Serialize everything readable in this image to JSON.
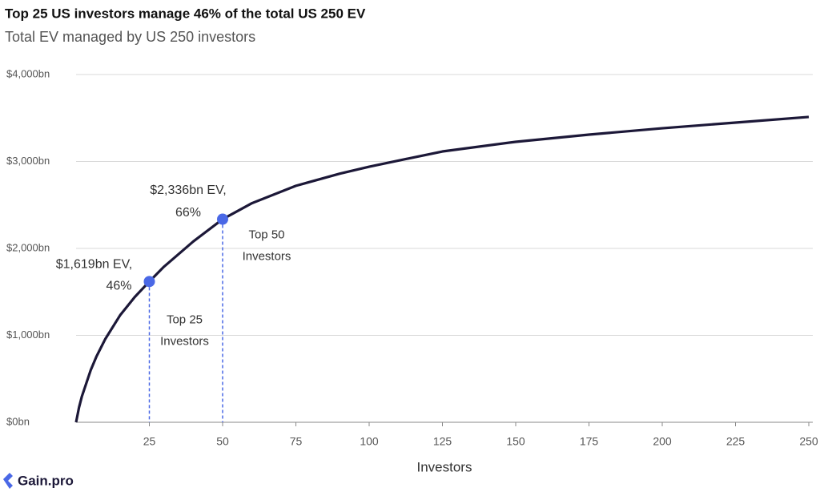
{
  "chart_data": {
    "type": "line",
    "title": "Top 25 US investors manage 46% of the total US 250 EV",
    "subtitle": "Total EV managed by US 250 investors",
    "x_label": "Investors",
    "x": [
      0,
      1,
      2,
      3,
      5,
      7,
      10,
      15,
      20,
      25,
      30,
      40,
      50,
      60,
      75,
      90,
      100,
      125,
      150,
      175,
      200,
      225,
      250
    ],
    "series": [
      {
        "color": "#1c1838",
        "values": [
          0,
          170,
          300,
          400,
          600,
          760,
          960,
          1230,
          1440,
          1619,
          1790,
          2080,
          2336,
          2520,
          2720,
          2860,
          2940,
          3115,
          3226,
          3309,
          3382,
          3447,
          3512
        ]
      }
    ],
    "xlim": [
      0,
      250
    ],
    "xticks": [
      25,
      50,
      75,
      100,
      125,
      150,
      175,
      200,
      225,
      250
    ],
    "ylim": [
      0,
      4000
    ],
    "yticks": [
      {
        "value": 0,
        "label": "$0bn"
      },
      {
        "value": 1000,
        "label": "$1,000bn"
      },
      {
        "value": 2000,
        "label": "$2,000bn"
      },
      {
        "value": 3000,
        "label": "$3,000bn"
      },
      {
        "value": 4000,
        "label": "$4,000bn"
      }
    ],
    "grid": true,
    "marker_color": "#4a68e6",
    "annotations": [
      {
        "x": 25,
        "y": 1619,
        "label_lines": [
          "$1,619bn EV,",
          "46%"
        ],
        "note_lines": [
          "Top 25",
          "Investors"
        ]
      },
      {
        "x": 50,
        "y": 2336,
        "label_lines": [
          "$2,336bn EV,",
          "66%"
        ],
        "note_lines": [
          "Top 50",
          "Investors"
        ]
      }
    ]
  },
  "footer": {
    "brand": "Gain.pro"
  }
}
